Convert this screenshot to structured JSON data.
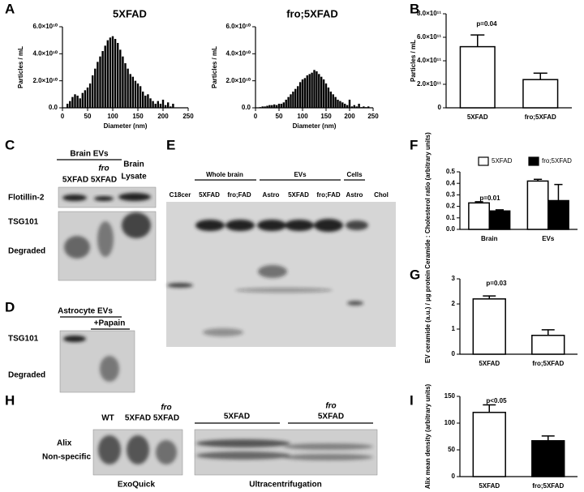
{
  "panels": [
    "A",
    "B",
    "C",
    "D",
    "E",
    "F",
    "G",
    "H",
    "I"
  ],
  "blot_C": {
    "group": "Brain EVs",
    "lanes": [
      "5XFAD",
      "fro",
      "5XFAD",
      "Brain",
      "Lysate"
    ],
    "rows": [
      "Flotillin-2",
      "TSG101",
      "Degraded"
    ]
  },
  "blot_D": {
    "group": "Astrocyte EVs",
    "treatment": "+Papain",
    "rows": [
      "TSG101",
      "Degraded"
    ]
  },
  "blot_E": {
    "groups": [
      "Whole brain",
      "EVs",
      "Cells"
    ],
    "lanes": [
      "C18cer",
      "5XFAD",
      "fro;FAD",
      "Astro",
      "5XFAD",
      "fro;FAD",
      "Astro",
      "Chol"
    ]
  },
  "blot_H": {
    "lanes": [
      "WT",
      "5XFAD",
      "fro",
      "5XFAD"
    ],
    "groups": [
      "5XFAD",
      "fro",
      "5XFAD"
    ],
    "rows": [
      "Alix",
      "Non-specific"
    ],
    "methods": [
      "ExoQuick",
      "Ultracentrifugation"
    ]
  },
  "chart_data": [
    {
      "type": "bar",
      "title": "5XFAD",
      "xlabel": "Diameter (nm)",
      "ylabel": "Particles / mL",
      "color": "#000000",
      "x": [
        10,
        15,
        20,
        25,
        30,
        35,
        40,
        45,
        50,
        55,
        60,
        65,
        70,
        75,
        80,
        85,
        90,
        95,
        100,
        105,
        110,
        115,
        120,
        125,
        130,
        135,
        140,
        145,
        150,
        155,
        160,
        165,
        170,
        175,
        180,
        185,
        190,
        195,
        200,
        205,
        210,
        215,
        220
      ],
      "values": [
        3000000000.0,
        5000000000.0,
        8000000000.0,
        10000000000.0,
        9000000000.0,
        7000000000.0,
        11000000000.0,
        13000000000.0,
        15000000000.0,
        18000000000.0,
        24000000000.0,
        29000000000.0,
        34000000000.0,
        38000000000.0,
        42000000000.0,
        46000000000.0,
        50000000000.0,
        52000000000.0,
        53000000000.0,
        51000000000.0,
        48000000000.0,
        43000000000.0,
        38000000000.0,
        33000000000.0,
        29000000000.0,
        25000000000.0,
        23000000000.0,
        20000000000.0,
        18000000000.0,
        16000000000.0,
        12000000000.0,
        9000000000.0,
        10000000000.0,
        7000000000.0,
        5000000000.0,
        3000000000.0,
        5000000000.0,
        3000000000.0,
        6000000000.0,
        2000000000.0,
        4000000000.0,
        1000000000.0,
        3000000000.0
      ],
      "xlim": [
        0,
        250
      ],
      "xticks": [
        0,
        50,
        100,
        150,
        200,
        250
      ],
      "ylim": [
        0,
        60000000000.0
      ],
      "yticks": [
        {
          "value": 0,
          "label": "0.0"
        },
        {
          "value": 20000000000.0,
          "label": "2.0×10¹⁰"
        },
        {
          "value": 40000000000.0,
          "label": "4.0×10¹⁰"
        },
        {
          "value": 60000000000.0,
          "label": "6.0×10¹⁰"
        }
      ]
    },
    {
      "type": "bar",
      "title": "fro;5XFAD",
      "xlabel": "Diameter (nm)",
      "ylabel": "Particles / mL",
      "color": "#000000",
      "x": [
        10,
        15,
        20,
        25,
        30,
        35,
        40,
        45,
        50,
        55,
        60,
        65,
        70,
        75,
        80,
        85,
        90,
        95,
        100,
        105,
        110,
        115,
        120,
        125,
        130,
        135,
        140,
        145,
        150,
        155,
        160,
        165,
        170,
        175,
        180,
        185,
        190,
        195,
        200,
        205,
        210,
        215,
        220,
        225,
        230,
        235,
        240
      ],
      "values": [
        500000000.0,
        1000000000.0,
        1000000000.0,
        1500000000.0,
        2000000000.0,
        2000000000.0,
        2500000000.0,
        2000000000.0,
        3000000000.0,
        3000000000.0,
        4000000000.0,
        6000000000.0,
        8000000000.0,
        10000000000.0,
        12000000000.0,
        14000000000.0,
        16000000000.0,
        19000000000.0,
        21000000000.0,
        22000000000.0,
        24000000000.0,
        25000000000.0,
        26000000000.0,
        28000000000.0,
        27000000000.0,
        25000000000.0,
        23000000000.0,
        21000000000.0,
        18000000000.0,
        15000000000.0,
        12000000000.0,
        10000000000.0,
        8000000000.0,
        6000000000.0,
        5000000000.0,
        4000000000.0,
        3000000000.0,
        2000000000.0,
        6000000000.0,
        1000000000.0,
        2000000000.0,
        1000000000.0,
        3000000000.0,
        500000000.0,
        1000000000.0,
        500000000.0,
        1000000000.0
      ],
      "xlim": [
        0,
        250
      ],
      "xticks": [
        0,
        50,
        100,
        150,
        200,
        250
      ],
      "ylim": [
        0,
        60000000000.0
      ],
      "yticks": [
        {
          "value": 0,
          "label": "0.0"
        },
        {
          "value": 20000000000.0,
          "label": "2.0×10¹⁰"
        },
        {
          "value": 40000000000.0,
          "label": "4.0×10¹⁰"
        },
        {
          "value": 60000000000.0,
          "label": "6.0×10¹⁰"
        }
      ]
    },
    {
      "type": "bar",
      "ylabel": "Particles / mL",
      "annotation": "p=0.04",
      "categories": [
        "5XFAD",
        "fro;5XFAD"
      ],
      "values": [
        520000000000.0,
        240000000000.0
      ],
      "errors": [
        100000000000.0,
        55000000000.0
      ],
      "colors": [
        "#ffffff",
        "#ffffff"
      ],
      "ylim": [
        0,
        800000000000.0
      ],
      "yticks": [
        0,
        {
          "value": 200000000000.0,
          "label": "2.0×10¹¹"
        },
        {
          "value": 400000000000.0,
          "label": "4.0×10¹¹"
        },
        {
          "value": 600000000000.0,
          "label": "6.0×10¹¹"
        },
        {
          "value": 800000000000.0,
          "label": "8.0×10¹¹"
        }
      ]
    },
    {
      "type": "bar",
      "ylabel": "Ceramide : Cholesterol ratio (arbitrary units)",
      "annotation": "p=0.01",
      "legend": "top",
      "categories": [
        "Brain",
        "EVs"
      ],
      "series": [
        {
          "name": "5XFAD",
          "color": "#ffffff",
          "values": [
            0.23,
            0.42
          ],
          "errors": [
            0.01,
            0.015
          ]
        },
        {
          "name": "fro;5XFAD",
          "color": "#000000",
          "values": [
            0.16,
            0.25
          ],
          "errors": [
            0.01,
            0.14
          ]
        }
      ],
      "ylim": [
        0,
        0.5
      ],
      "yticks": [
        {
          "value": 0,
          "label": "0.0"
        },
        0.1,
        0.2,
        0.3,
        0.4,
        0.5
      ]
    },
    {
      "type": "bar",
      "ylabel": "EV ceramide (a.u.) / µg protein",
      "annotation": "p=0.03",
      "categories": [
        "5XFAD",
        "fro;5XFAD"
      ],
      "values": [
        2.2,
        0.75
      ],
      "errors": [
        0.12,
        0.22
      ],
      "colors": [
        "#ffffff",
        "#ffffff"
      ],
      "ylim": [
        0,
        3
      ],
      "yticks": [
        0,
        1,
        2,
        3
      ]
    },
    {
      "type": "bar",
      "ylabel": "Alix mean density (arbitrary units)",
      "annotation": "p<0.05",
      "categories": [
        "5XFAD",
        "fro;5XFAD"
      ],
      "values": [
        120,
        67
      ],
      "errors": [
        14,
        9
      ],
      "colors": [
        "#ffffff",
        "#000000"
      ],
      "ylim": [
        0,
        150
      ],
      "yticks": [
        0,
        50,
        100,
        150
      ]
    }
  ]
}
